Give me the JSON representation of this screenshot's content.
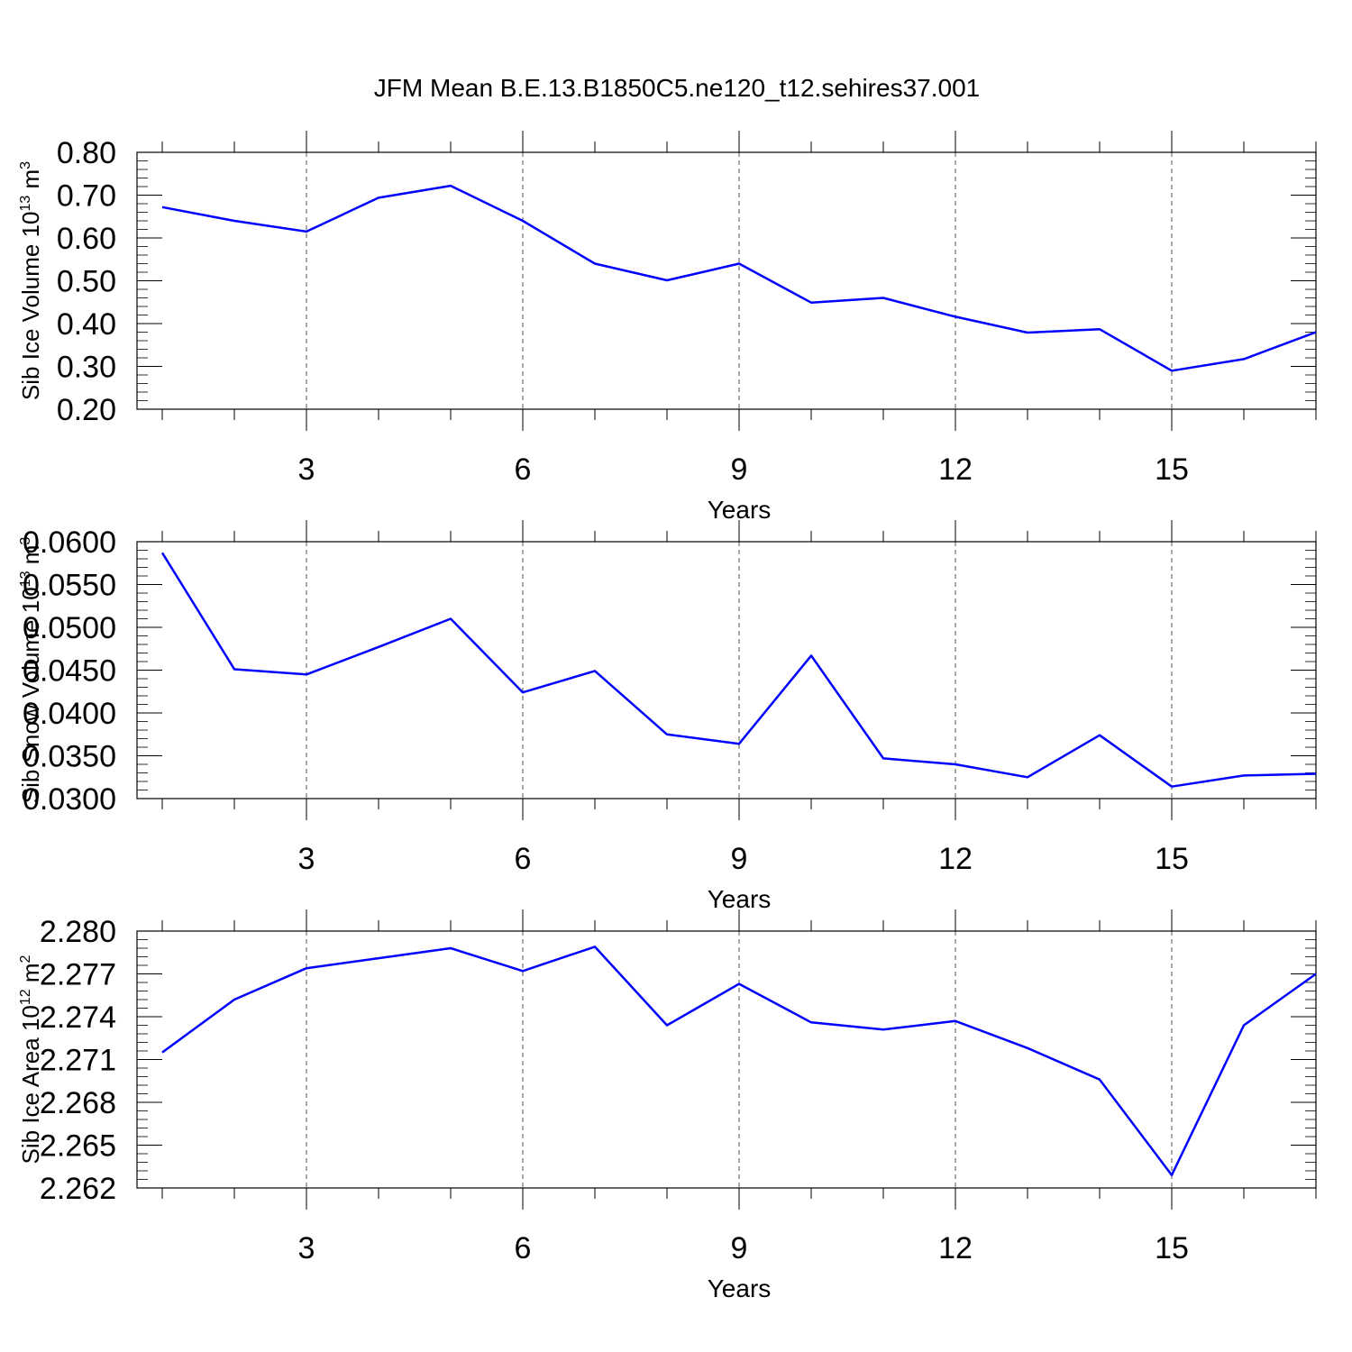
{
  "title": "JFM Mean B.E.13.B1850C5.ne120_t12.sehires37.001",
  "line_color": "#0000ff",
  "chart_data": [
    {
      "type": "line",
      "ylabel": "Sib Ice Volume 10",
      "ylabel_exp": "13",
      "ylabel_unit": " m",
      "ylabel_unit_exp": "3",
      "xlabel": "Years",
      "xlim": [
        1,
        17
      ],
      "ylim": [
        0.2,
        0.8
      ],
      "x_ticks": [
        "3",
        "6",
        "9",
        "12",
        "15"
      ],
      "y_ticks": [
        "0.20",
        "0.30",
        "0.40",
        "0.50",
        "0.60",
        "0.70",
        "0.80"
      ],
      "x": [
        1,
        2,
        3,
        4,
        5,
        6,
        7,
        8,
        9,
        10,
        11,
        12,
        13,
        14,
        15,
        16,
        17
      ],
      "series": [
        {
          "values": [
            0.672,
            0.64,
            0.615,
            0.694,
            0.722,
            0.64,
            0.54,
            0.501,
            0.54,
            0.449,
            0.46,
            0.416,
            0.379,
            0.387,
            0.29,
            0.317,
            0.38
          ]
        }
      ],
      "grid": "vertical dashed at major x ticks"
    },
    {
      "type": "line",
      "ylabel": "Sib Snow Volume 10",
      "ylabel_exp": "13",
      "ylabel_unit": " m",
      "ylabel_unit_exp": "3",
      "xlabel": "Years",
      "xlim": [
        1,
        17
      ],
      "ylim": [
        0.03,
        0.06
      ],
      "x_ticks": [
        "3",
        "6",
        "9",
        "12",
        "15"
      ],
      "y_ticks": [
        "0.0300",
        "0.0350",
        "0.0400",
        "0.0450",
        "0.0500",
        "0.0550",
        "0.0600"
      ],
      "x": [
        1,
        2,
        3,
        4,
        5,
        6,
        7,
        8,
        9,
        10,
        11,
        12,
        13,
        14,
        15,
        16,
        17
      ],
      "series": [
        {
          "values": [
            0.0587,
            0.0451,
            0.0445,
            0.0477,
            0.051,
            0.0424,
            0.0449,
            0.0375,
            0.0364,
            0.0467,
            0.0347,
            0.034,
            0.0325,
            0.0374,
            0.0314,
            0.0327,
            0.0329
          ]
        }
      ],
      "grid": "vertical dashed at major x ticks"
    },
    {
      "type": "line",
      "ylabel": "Sib Ice Area 10",
      "ylabel_exp": "12",
      "ylabel_unit": " m",
      "ylabel_unit_exp": "2",
      "xlabel": "Years",
      "xlim": [
        1,
        17
      ],
      "ylim": [
        2.262,
        2.28
      ],
      "x_ticks": [
        "3",
        "6",
        "9",
        "12",
        "15"
      ],
      "y_ticks": [
        "2.262",
        "2.265",
        "2.268",
        "2.271",
        "2.274",
        "2.277",
        "2.280"
      ],
      "x": [
        1,
        2,
        3,
        4,
        5,
        6,
        7,
        8,
        9,
        10,
        11,
        12,
        13,
        14,
        15,
        16,
        17
      ],
      "series": [
        {
          "values": [
            2.2715,
            2.2752,
            2.2774,
            2.2781,
            2.2788,
            2.2772,
            2.2789,
            2.2734,
            2.2763,
            2.2736,
            2.2731,
            2.2737,
            2.2718,
            2.2696,
            2.2629,
            2.2734,
            2.277
          ]
        }
      ],
      "grid": "vertical dashed at major x ticks"
    }
  ]
}
